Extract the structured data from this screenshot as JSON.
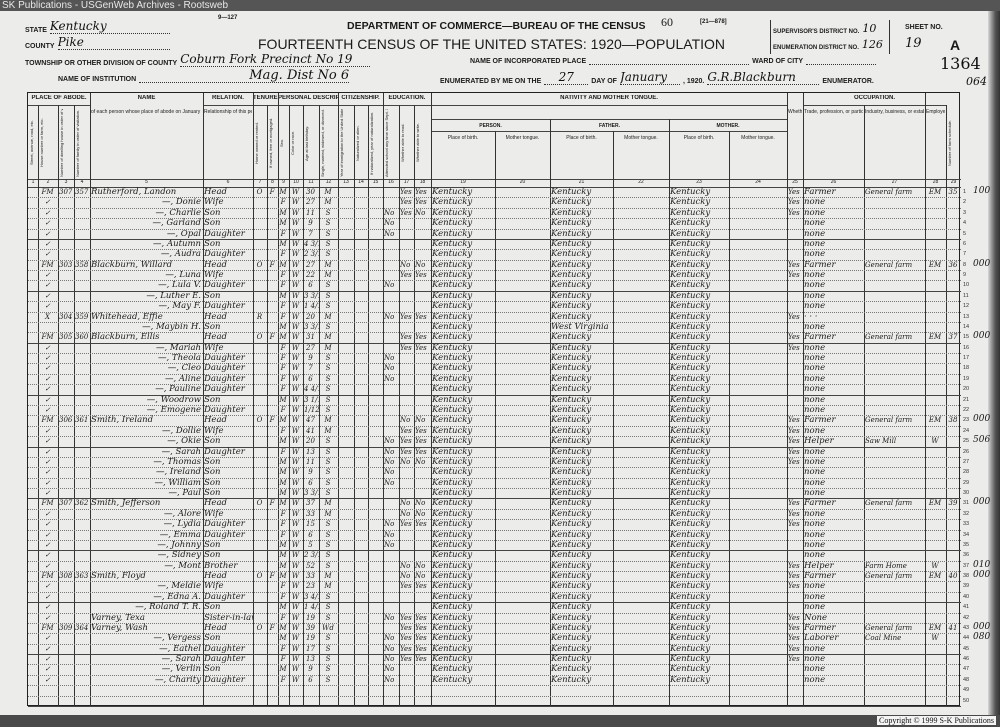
{
  "banner": "SK Publications - USGenWeb Archives - Rootsweb",
  "copyright": "Copyright © 1999 S-K Publications",
  "header": {
    "form_no": "9—127",
    "department": "DEPARTMENT OF COMMERCE—BUREAU OF THE CENSUS",
    "page_stamp": "60",
    "form_code": "[21—878]",
    "title": "FOURTEENTH CENSUS OF THE UNITED STATES: 1920—POPULATION",
    "state_label": "STATE",
    "state": "Kentucky",
    "county_label": "COUNTY",
    "county": "Pike",
    "township_label": "TOWNSHIP OR OTHER DIVISION OF COUNTY",
    "township": "Coburn Fork Precinct No 19",
    "institution_label": "NAME OF INSTITUTION",
    "institution": "Mag. Dist No 6",
    "incorporated_label": "NAME OF INCORPORATED PLACE",
    "ward_label": "WARD OF CITY",
    "enumerated_label": "ENUMERATED BY ME ON THE",
    "day": "27",
    "day_of_label": "DAY OF",
    "month": "January",
    "year": ", 1920.",
    "enumerator": "G.R.Blackburn",
    "enumerator_label": "ENUMERATOR.",
    "supervisor_label": "SUPERVISOR'S DISTRICT NO.",
    "supervisor": "10",
    "ed_label": "ENUMERATION DISTRICT NO.",
    "ed": "126",
    "sheet_label": "SHEET NO.",
    "sheet": "19",
    "sheet_side": "A",
    "margin_no1": "1364",
    "margin_no2": "064"
  },
  "groups": [
    "PLACE OF ABODE.",
    "NAME",
    "RELATION.",
    "TENURE.",
    "PERSONAL DESCRIPTION.",
    "CITIZENSHIP.",
    "EDUCATION.",
    "NATIVITY AND MOTHER TONGUE.",
    "OCCUPATION."
  ],
  "nativity_sub": [
    "PERSON.",
    "FATHER.",
    "MOTHER."
  ],
  "columns": [
    "Street, avenue, road, etc.",
    "House number or farm, etc.",
    "Number of dwelling house in order of visitation.",
    "Number of family in order of visitation.",
    "of each person whose place of abode on January 1, 1920, was in this family.",
    "Relationship of this person to the head of the family.",
    "Home owned or rented.",
    "If owned, free or mortgaged.",
    "Sex.",
    "Color or race.",
    "Age at last birthday.",
    "Single, married, widowed, or divorced.",
    "Year of immigration to the United States.",
    "Naturalized or alien.",
    "If naturalized, year of naturalization.",
    "Attended school any time since Sept. 1, 1919.",
    "Whether able to read.",
    "Whether able to write.",
    "Place of birth.",
    "Mother tongue.",
    "Place of birth.",
    "Mother tongue.",
    "Place of birth.",
    "Mother tongue.",
    "Whether able to speak English.",
    "Trade, profession, or particular kind of work done.",
    "Industry, business, or establishment in which at work.",
    "Employer, salary or wage worker, or working on own account.",
    "Number of farm schedule."
  ],
  "rows": [
    {
      "abode": "FM",
      "dw": "307",
      "fam": "357",
      "name": "Rutherford, Landon",
      "rel": "Head",
      "home": "O",
      "free": "F",
      "sex": "M",
      "race": "W",
      "age": "30",
      "ms": "M",
      "school": "",
      "read": "Yes",
      "write": "Yes",
      "bp": "Kentucky",
      "fbp": "Kentucky",
      "mbp": "Kentucky",
      "eng": "Yes",
      "trade": "Farmer",
      "ind": "General farm",
      "emp": "EM",
      "farm": "35",
      "ann": "100"
    },
    {
      "abode": "✓",
      "name": "—, Donie",
      "rel": "Wife",
      "sex": "F",
      "race": "W",
      "age": "27",
      "ms": "M",
      "read": "Yes",
      "write": "Yes",
      "bp": "Kentucky",
      "fbp": "Kentucky",
      "mbp": "Kentucky",
      "eng": "Yes",
      "trade": "none"
    },
    {
      "abode": "✓",
      "name": "—, Charlie",
      "rel": "Son",
      "sex": "M",
      "race": "W",
      "age": "11",
      "ms": "S",
      "school": "No",
      "read": "Yes",
      "write": "No",
      "bp": "Kentucky",
      "fbp": "Kentucky",
      "mbp": "Kentucky",
      "eng": "Yes",
      "trade": "none"
    },
    {
      "abode": "✓",
      "name": "—, Garland",
      "rel": "Son",
      "sex": "M",
      "race": "W",
      "age": "9",
      "ms": "S",
      "school": "No",
      "bp": "Kentucky",
      "fbp": "Kentucky",
      "mbp": "Kentucky",
      "trade": "none"
    },
    {
      "abode": "✓",
      "name": "—, Opal",
      "rel": "Daughter",
      "sex": "F",
      "race": "W",
      "age": "7",
      "ms": "S",
      "school": "No",
      "bp": "Kentucky",
      "fbp": "Kentucky",
      "mbp": "Kentucky",
      "trade": "none"
    },
    {
      "abode": "✓",
      "name": "—, Autumn",
      "rel": "Son",
      "sex": "M",
      "race": "W",
      "age": "4 3/12",
      "ms": "S",
      "bp": "Kentucky",
      "fbp": "Kentucky",
      "mbp": "Kentucky",
      "trade": "none"
    },
    {
      "abode": "✓",
      "name": "—, Audra",
      "rel": "Daughter",
      "sex": "F",
      "race": "W",
      "age": "2 3/12",
      "ms": "S",
      "bp": "Kentucky",
      "fbp": "Kentucky",
      "mbp": "Kentucky",
      "trade": "none"
    },
    {
      "abode": "FM",
      "dw": "303",
      "fam": "358",
      "name": "Blackburn, Willard",
      "rel": "Head",
      "home": "O",
      "free": "F",
      "sex": "M",
      "race": "W",
      "age": "27",
      "ms": "M",
      "read": "No",
      "write": "No",
      "bp": "Kentucky",
      "fbp": "Kentucky",
      "mbp": "Kentucky",
      "eng": "Yes",
      "trade": "Farmer",
      "ind": "General farm",
      "emp": "EM",
      "farm": "36",
      "ann": "000"
    },
    {
      "abode": "✓",
      "name": "—, Luna",
      "rel": "Wife",
      "sex": "F",
      "race": "W",
      "age": "22",
      "ms": "M",
      "read": "Yes",
      "write": "Yes",
      "bp": "Kentucky",
      "fbp": "Kentucky",
      "mbp": "Kentucky",
      "eng": "Yes",
      "trade": "none"
    },
    {
      "abode": "✓",
      "name": "—, Lula V.",
      "rel": "Daughter",
      "sex": "F",
      "race": "W",
      "age": "6",
      "ms": "S",
      "school": "No",
      "bp": "Kentucky",
      "fbp": "Kentucky",
      "mbp": "Kentucky",
      "trade": "none"
    },
    {
      "abode": "✓",
      "name": "—, Luther E.",
      "rel": "Son",
      "sex": "M",
      "race": "W",
      "age": "3 3/12",
      "ms": "S",
      "bp": "Kentucky",
      "fbp": "Kentucky",
      "mbp": "Kentucky",
      "trade": "none"
    },
    {
      "abode": "✓",
      "name": "—, May F.",
      "rel": "Daughter",
      "sex": "F",
      "race": "W",
      "age": "1 4/12",
      "ms": "S",
      "bp": "Kentucky",
      "fbp": "Kentucky",
      "mbp": "Kentucky",
      "trade": "none"
    },
    {
      "abode": "X",
      "dw": "304",
      "fam": "359",
      "name": "Whitehead, Effie",
      "rel": "Head",
      "home": "R",
      "sex": "F",
      "race": "W",
      "age": "20",
      "ms": "M",
      "school": "No",
      "read": "Yes",
      "write": "Yes",
      "bp": "Kentucky",
      "fbp": "Kentucky",
      "mbp": "Kentucky",
      "eng": "Yes",
      "trade": "· · ·"
    },
    {
      "name": "—, Maybin H.",
      "rel": "Son",
      "sex": "M",
      "race": "W",
      "age": "3 3/12",
      "ms": "S",
      "bp": "Kentucky",
      "fbp": "West Virginia",
      "mbp": "Kentucky",
      "trade": "none"
    },
    {
      "abode": "FM",
      "dw": "305",
      "fam": "360",
      "name": "Blackburn, Ellis",
      "rel": "Head",
      "home": "O",
      "free": "F",
      "sex": "M",
      "race": "W",
      "age": "31",
      "ms": "M",
      "read": "Yes",
      "write": "Yes",
      "bp": "Kentucky",
      "fbp": "Kentucky",
      "mbp": "Kentucky",
      "eng": "Yes",
      "trade": "Farmer",
      "ind": "General farm",
      "emp": "EM",
      "farm": "37",
      "ann": "000"
    },
    {
      "abode": "✓",
      "name": "—, Mariah",
      "rel": "Wife",
      "sex": "F",
      "race": "W",
      "age": "27",
      "ms": "M",
      "read": "Yes",
      "write": "Yes",
      "bp": "Kentucky",
      "fbp": "Kentucky",
      "mbp": "Kentucky",
      "eng": "Yes",
      "trade": "none"
    },
    {
      "abode": "✓",
      "name": "—, Theola",
      "rel": "Daughter",
      "sex": "F",
      "race": "W",
      "age": "9",
      "ms": "S",
      "school": "No",
      "bp": "Kentucky",
      "fbp": "Kentucky",
      "mbp": "Kentucky",
      "trade": "none"
    },
    {
      "abode": "✓",
      "name": "—, Cleo",
      "rel": "Daughter",
      "sex": "F",
      "race": "W",
      "age": "7",
      "ms": "S",
      "school": "No",
      "bp": "Kentucky",
      "fbp": "Kentucky",
      "mbp": "Kentucky",
      "trade": "none"
    },
    {
      "abode": "✓",
      "name": "—, Aline",
      "rel": "Daughter",
      "sex": "F",
      "race": "W",
      "age": "6",
      "ms": "S",
      "school": "No",
      "bp": "Kentucky",
      "fbp": "Kentucky",
      "mbp": "Kentucky",
      "trade": "none"
    },
    {
      "abode": "✓",
      "name": "—, Pauline",
      "rel": "Daughter",
      "sex": "F",
      "race": "W",
      "age": "4 4/12",
      "ms": "S",
      "bp": "Kentucky",
      "fbp": "Kentucky",
      "mbp": "Kentucky",
      "trade": "none"
    },
    {
      "abode": "✓",
      "name": "—, Woodrow",
      "rel": "Son",
      "sex": "M",
      "race": "W",
      "age": "3 1/12",
      "ms": "S",
      "bp": "Kentucky",
      "fbp": "Kentucky",
      "mbp": "Kentucky",
      "trade": "none"
    },
    {
      "abode": "✓",
      "name": "—, Emogene",
      "rel": "Daughter",
      "sex": "F",
      "race": "W",
      "age": "1/12",
      "ms": "S",
      "bp": "Kentucky",
      "fbp": "Kentucky",
      "mbp": "Kentucky",
      "trade": "none"
    },
    {
      "abode": "FM",
      "dw": "306",
      "fam": "361",
      "name": "Smith, Ireland",
      "rel": "Head",
      "home": "O",
      "free": "F",
      "sex": "M",
      "race": "W",
      "age": "47",
      "ms": "M",
      "read": "No",
      "write": "No",
      "bp": "Kentucky",
      "fbp": "Kentucky",
      "mbp": "Kentucky",
      "eng": "Yes",
      "trade": "Farmer",
      "ind": "General farm",
      "emp": "EM",
      "farm": "38",
      "ann": "000"
    },
    {
      "abode": "✓",
      "name": "—, Dollie",
      "rel": "Wife",
      "sex": "F",
      "race": "W",
      "age": "41",
      "ms": "M",
      "read": "Yes",
      "write": "Yes",
      "bp": "Kentucky",
      "fbp": "Kentucky",
      "mbp": "Kentucky",
      "eng": "Yes",
      "trade": "none"
    },
    {
      "abode": "✓",
      "name": "—, Okie",
      "rel": "Son",
      "sex": "M",
      "race": "W",
      "age": "20",
      "ms": "S",
      "school": "No",
      "read": "Yes",
      "write": "Yes",
      "bp": "Kentucky",
      "fbp": "Kentucky",
      "mbp": "Kentucky",
      "eng": "Yes",
      "trade": "Helper",
      "ind": "Saw Mill",
      "emp": "W",
      "ann": "506"
    },
    {
      "abode": "✓",
      "name": "—, Sarah",
      "rel": "Daughter",
      "sex": "F",
      "race": "W",
      "age": "13",
      "ms": "S",
      "school": "No",
      "read": "Yes",
      "write": "Yes",
      "bp": "Kentucky",
      "fbp": "Kentucky",
      "mbp": "Kentucky",
      "eng": "Yes",
      "trade": "none"
    },
    {
      "abode": "✓",
      "name": "—, Thomas",
      "rel": "Son",
      "sex": "M",
      "race": "W",
      "age": "11",
      "ms": "S",
      "school": "No",
      "read": "No",
      "write": "No",
      "bp": "Kentucky",
      "fbp": "Kentucky",
      "mbp": "Kentucky",
      "eng": "Yes",
      "trade": "none"
    },
    {
      "abode": "✓",
      "name": "—, Ireland",
      "rel": "Son",
      "sex": "M",
      "race": "W",
      "age": "9",
      "ms": "S",
      "school": "No",
      "bp": "Kentucky",
      "fbp": "Kentucky",
      "mbp": "Kentucky",
      "trade": "none"
    },
    {
      "abode": "✓",
      "name": "—, William",
      "rel": "Son",
      "sex": "M",
      "race": "W",
      "age": "6",
      "ms": "S",
      "school": "No",
      "bp": "Kentucky",
      "fbp": "Kentucky",
      "mbp": "Kentucky",
      "trade": "none"
    },
    {
      "abode": "✓",
      "name": "—, Paul",
      "rel": "Son",
      "sex": "M",
      "race": "W",
      "age": "3 3/12",
      "ms": "S",
      "bp": "Kentucky",
      "fbp": "Kentucky",
      "mbp": "Kentucky",
      "trade": "none"
    },
    {
      "abode": "FM",
      "dw": "307",
      "fam": "362",
      "name": "Smith, Jefferson",
      "rel": "Head",
      "home": "O",
      "free": "F",
      "sex": "M",
      "race": "W",
      "age": "37",
      "ms": "M",
      "read": "No",
      "write": "No",
      "bp": "Kentucky",
      "fbp": "Kentucky",
      "mbp": "Kentucky",
      "eng": "Yes",
      "trade": "Farmer",
      "ind": "General farm",
      "emp": "EM",
      "farm": "39",
      "ann": "000"
    },
    {
      "abode": "✓",
      "name": "—, Alore",
      "rel": "Wife",
      "sex": "F",
      "race": "W",
      "age": "33",
      "ms": "M",
      "read": "No",
      "write": "No",
      "bp": "Kentucky",
      "fbp": "Kentucky",
      "mbp": "Kentucky",
      "eng": "Yes",
      "trade": "none"
    },
    {
      "abode": "✓",
      "name": "—, Lydia",
      "rel": "Daughter",
      "sex": "F",
      "race": "W",
      "age": "15",
      "ms": "S",
      "school": "No",
      "read": "Yes",
      "write": "Yes",
      "bp": "Kentucky",
      "fbp": "Kentucky",
      "mbp": "Kentucky",
      "eng": "Yes",
      "trade": "none"
    },
    {
      "abode": "✓",
      "name": "—, Emma",
      "rel": "Daughter",
      "sex": "F",
      "race": "W",
      "age": "6",
      "ms": "S",
      "school": "No",
      "bp": "Kentucky",
      "fbp": "Kentucky",
      "mbp": "Kentucky",
      "trade": "none"
    },
    {
      "abode": "✓",
      "name": "—, Johnny",
      "rel": "Son",
      "sex": "M",
      "race": "W",
      "age": "5",
      "ms": "S",
      "school": "No",
      "bp": "Kentucky",
      "fbp": "Kentucky",
      "mbp": "Kentucky",
      "trade": "none"
    },
    {
      "abode": "✓",
      "name": "—, Sidney",
      "rel": "Son",
      "sex": "M",
      "race": "W",
      "age": "2 3/12",
      "ms": "S",
      "bp": "Kentucky",
      "fbp": "Kentucky",
      "mbp": "Kentucky",
      "trade": "none"
    },
    {
      "abode": "✓",
      "name": "—, Mont",
      "rel": "Brother",
      "sex": "M",
      "race": "W",
      "age": "52",
      "ms": "S",
      "read": "No",
      "write": "No",
      "bp": "Kentucky",
      "fbp": "Kentucky",
      "mbp": "Kentucky",
      "eng": "Yes",
      "trade": "Helper",
      "ind": "Farm Home",
      "emp": "W",
      "ann": "010"
    },
    {
      "abode": "FM",
      "dw": "308",
      "fam": "363",
      "name": "Smith, Floyd",
      "rel": "Head",
      "home": "O",
      "free": "F",
      "sex": "M",
      "race": "W",
      "age": "33",
      "ms": "M",
      "read": "No",
      "write": "No",
      "bp": "Kentucky",
      "fbp": "Kentucky",
      "mbp": "Kentucky",
      "eng": "Yes",
      "trade": "Farmer",
      "ind": "General farm",
      "emp": "EM",
      "farm": "40",
      "ann": "000"
    },
    {
      "abode": "✓",
      "name": "—, Meldie",
      "rel": "Wife",
      "sex": "F",
      "race": "W",
      "age": "23",
      "ms": "M",
      "read": "Yes",
      "write": "Yes",
      "bp": "Kentucky",
      "fbp": "Kentucky",
      "mbp": "Kentucky",
      "eng": "Yes",
      "trade": "none"
    },
    {
      "abode": "✓",
      "name": "—, Edna A.",
      "rel": "Daughter",
      "sex": "F",
      "race": "W",
      "age": "3 4/12",
      "ms": "S",
      "bp": "Kentucky",
      "fbp": "Kentucky",
      "mbp": "Kentucky",
      "trade": "none"
    },
    {
      "abode": "✓",
      "name": "—, Roland T. R.",
      "rel": "Son",
      "sex": "M",
      "race": "W",
      "age": "1 4/12",
      "ms": "S",
      "bp": "Kentucky",
      "fbp": "Kentucky",
      "mbp": "Kentucky",
      "trade": "none"
    },
    {
      "abode": "✓",
      "name": "Varney, Texa",
      "rel": "Sister-in-law",
      "sex": "F",
      "race": "W",
      "age": "19",
      "ms": "S",
      "school": "No",
      "read": "Yes",
      "write": "Yes",
      "bp": "Kentucky",
      "fbp": "Kentucky",
      "mbp": "Kentucky",
      "eng": "Yes",
      "trade": "None"
    },
    {
      "abode": "FM",
      "dw": "309",
      "fam": "364",
      "name": "Varney, Wash",
      "rel": "Head",
      "home": "O",
      "free": "F",
      "sex": "M",
      "race": "W",
      "age": "39",
      "ms": "Wd",
      "read": "Yes",
      "write": "Yes",
      "bp": "Kentucky",
      "fbp": "Kentucky",
      "mbp": "Kentucky",
      "eng": "Yes",
      "trade": "Farmer",
      "ind": "General farm",
      "emp": "EM",
      "farm": "41",
      "ann": "000"
    },
    {
      "abode": "✓",
      "name": "—, Vergess",
      "rel": "Son",
      "sex": "M",
      "race": "W",
      "age": "19",
      "ms": "S",
      "school": "No",
      "read": "Yes",
      "write": "Yes",
      "bp": "Kentucky",
      "fbp": "Kentucky",
      "mbp": "Kentucky",
      "eng": "Yes",
      "trade": "Laborer",
      "ind": "Coal Mine",
      "emp": "W",
      "ann": "080"
    },
    {
      "abode": "✓",
      "name": "—, Eathel",
      "rel": "Daughter",
      "sex": "F",
      "race": "W",
      "age": "17",
      "ms": "S",
      "school": "No",
      "read": "Yes",
      "write": "Yes",
      "bp": "Kentucky",
      "fbp": "Kentucky",
      "mbp": "Kentucky",
      "eng": "Yes",
      "trade": "none"
    },
    {
      "abode": "✓",
      "name": "—, Sarah",
      "rel": "Daughter",
      "sex": "F",
      "race": "W",
      "age": "13",
      "ms": "S",
      "school": "No",
      "read": "Yes",
      "write": "Yes",
      "bp": "Kentucky",
      "fbp": "Kentucky",
      "mbp": "Kentucky",
      "eng": "Yes",
      "trade": "none"
    },
    {
      "abode": "✓",
      "name": "—, Verlin",
      "rel": "Son",
      "sex": "M",
      "race": "W",
      "age": "9",
      "ms": "S",
      "school": "No",
      "bp": "Kentucky",
      "fbp": "Kentucky",
      "mbp": "Kentucky",
      "trade": "none"
    },
    {
      "abode": "✓",
      "name": "—, Charity",
      "rel": "Daughter",
      "sex": "F",
      "race": "W",
      "age": "6",
      "ms": "S",
      "school": "No",
      "bp": "Kentucky",
      "fbp": "Kentucky",
      "mbp": "Kentucky",
      "trade": "none"
    },
    {},
    {}
  ]
}
